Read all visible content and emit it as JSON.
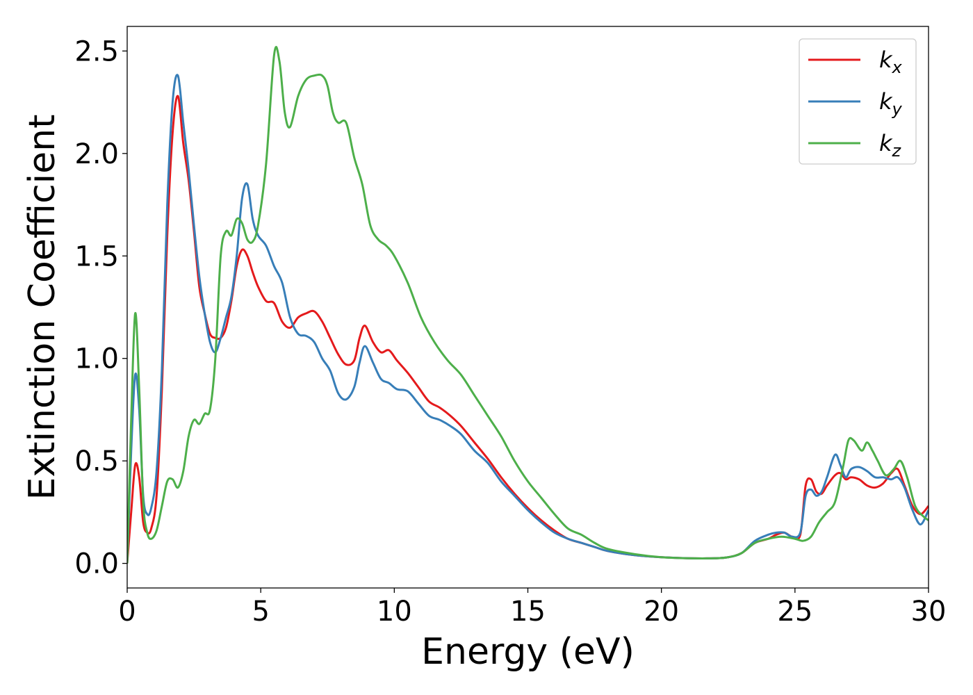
{
  "chart_data": {
    "type": "line",
    "xlabel": "Energy (eV)",
    "ylabel": "Extinction Coefficient",
    "xlim": [
      0,
      30
    ],
    "ylim": [
      -0.12,
      2.62
    ],
    "xticks": [
      0,
      5,
      10,
      15,
      20,
      25,
      30
    ],
    "xtick_labels": [
      "0",
      "5",
      "10",
      "15",
      "20",
      "25",
      "30"
    ],
    "yticks": [
      0.0,
      0.5,
      1.0,
      1.5,
      2.0,
      2.5
    ],
    "ytick_labels": [
      "0.0",
      "0.5",
      "1.0",
      "1.5",
      "2.0",
      "2.5"
    ],
    "grid": false,
    "legend_position": "top-right",
    "series": [
      {
        "name": "k_x",
        "label_main": "k",
        "label_sub": "x",
        "color": "#e41a1c",
        "x": [
          0,
          0.15,
          0.3,
          0.45,
          0.6,
          0.75,
          0.9,
          1.1,
          1.3,
          1.5,
          1.7,
          1.9,
          2.1,
          2.3,
          2.5,
          2.7,
          2.9,
          3.1,
          3.3,
          3.5,
          3.7,
          3.9,
          4.1,
          4.3,
          4.5,
          4.7,
          4.9,
          5.2,
          5.5,
          5.8,
          6.1,
          6.4,
          6.7,
          7.0,
          7.3,
          7.6,
          7.9,
          8.2,
          8.5,
          8.7,
          8.9,
          9.2,
          9.5,
          9.8,
          10.1,
          10.5,
          10.9,
          11.3,
          11.7,
          12.1,
          12.5,
          13.0,
          13.5,
          14.0,
          14.5,
          15.0,
          15.5,
          16.0,
          16.5,
          17.0,
          17.5,
          18.0,
          19.0,
          20.0,
          21.0,
          22.0,
          22.5,
          23.0,
          23.5,
          24.0,
          24.3,
          24.6,
          24.9,
          25.2,
          25.4,
          25.6,
          25.8,
          26.0,
          26.2,
          26.5,
          26.7,
          26.9,
          27.1,
          27.4,
          27.7,
          28.0,
          28.3,
          28.6,
          28.85,
          29.1,
          29.4,
          29.7,
          30.0
        ],
        "values": [
          0,
          0.25,
          0.48,
          0.42,
          0.2,
          0.15,
          0.17,
          0.33,
          0.85,
          1.6,
          2.1,
          2.28,
          2.05,
          1.87,
          1.62,
          1.35,
          1.22,
          1.12,
          1.1,
          1.1,
          1.15,
          1.28,
          1.45,
          1.53,
          1.5,
          1.42,
          1.35,
          1.28,
          1.27,
          1.18,
          1.15,
          1.2,
          1.22,
          1.23,
          1.18,
          1.1,
          1.02,
          0.97,
          0.99,
          1.1,
          1.16,
          1.08,
          1.03,
          1.04,
          0.99,
          0.93,
          0.86,
          0.79,
          0.76,
          0.72,
          0.67,
          0.59,
          0.51,
          0.42,
          0.34,
          0.27,
          0.21,
          0.16,
          0.12,
          0.1,
          0.08,
          0.06,
          0.04,
          0.03,
          0.025,
          0.025,
          0.03,
          0.05,
          0.1,
          0.12,
          0.14,
          0.15,
          0.13,
          0.14,
          0.38,
          0.41,
          0.35,
          0.34,
          0.38,
          0.43,
          0.44,
          0.41,
          0.42,
          0.41,
          0.38,
          0.37,
          0.39,
          0.44,
          0.46,
          0.38,
          0.28,
          0.24,
          0.28
        ]
      },
      {
        "name": "k_y",
        "label_main": "k",
        "label_sub": "y",
        "color": "#377eb8",
        "x": [
          0,
          0.15,
          0.3,
          0.45,
          0.6,
          0.75,
          0.9,
          1.1,
          1.3,
          1.5,
          1.7,
          1.9,
          2.1,
          2.3,
          2.5,
          2.7,
          2.9,
          3.1,
          3.3,
          3.5,
          3.7,
          3.9,
          4.1,
          4.3,
          4.5,
          4.7,
          4.9,
          5.2,
          5.5,
          5.8,
          6.1,
          6.4,
          6.7,
          7.0,
          7.3,
          7.6,
          7.9,
          8.2,
          8.5,
          8.7,
          8.9,
          9.2,
          9.5,
          9.8,
          10.1,
          10.5,
          10.9,
          11.3,
          11.7,
          12.1,
          12.5,
          13.0,
          13.5,
          14.0,
          14.5,
          15.0,
          15.5,
          16.0,
          16.5,
          17.0,
          17.5,
          18.0,
          19.0,
          20.0,
          21.0,
          22.0,
          22.5,
          23.0,
          23.5,
          24.0,
          24.3,
          24.6,
          24.9,
          25.2,
          25.4,
          25.6,
          25.8,
          26.0,
          26.2,
          26.5,
          26.7,
          26.9,
          27.1,
          27.4,
          27.7,
          28.0,
          28.3,
          28.6,
          28.85,
          29.1,
          29.4,
          29.7,
          30.0
        ],
        "values": [
          0,
          0.55,
          0.92,
          0.75,
          0.33,
          0.24,
          0.27,
          0.45,
          0.95,
          1.75,
          2.25,
          2.38,
          2.15,
          1.92,
          1.65,
          1.4,
          1.22,
          1.08,
          1.03,
          1.1,
          1.2,
          1.3,
          1.5,
          1.78,
          1.85,
          1.68,
          1.6,
          1.55,
          1.45,
          1.37,
          1.2,
          1.12,
          1.11,
          1.08,
          1.0,
          0.94,
          0.83,
          0.8,
          0.86,
          0.98,
          1.06,
          0.98,
          0.9,
          0.88,
          0.85,
          0.84,
          0.78,
          0.72,
          0.7,
          0.67,
          0.63,
          0.55,
          0.49,
          0.4,
          0.33,
          0.26,
          0.2,
          0.15,
          0.12,
          0.1,
          0.08,
          0.06,
          0.04,
          0.03,
          0.025,
          0.025,
          0.03,
          0.05,
          0.11,
          0.14,
          0.15,
          0.15,
          0.13,
          0.15,
          0.33,
          0.36,
          0.33,
          0.35,
          0.42,
          0.53,
          0.48,
          0.42,
          0.46,
          0.47,
          0.45,
          0.42,
          0.42,
          0.41,
          0.42,
          0.37,
          0.26,
          0.19,
          0.26
        ]
      },
      {
        "name": "k_z",
        "label_main": "k",
        "label_sub": "z",
        "color": "#4daf4a",
        "x": [
          0,
          0.15,
          0.3,
          0.45,
          0.6,
          0.75,
          0.9,
          1.1,
          1.3,
          1.5,
          1.7,
          1.9,
          2.1,
          2.3,
          2.5,
          2.7,
          2.9,
          3.1,
          3.3,
          3.5,
          3.7,
          3.9,
          4.1,
          4.3,
          4.5,
          4.7,
          4.9,
          5.2,
          5.5,
          5.7,
          5.9,
          6.1,
          6.4,
          6.7,
          7.0,
          7.3,
          7.5,
          7.7,
          7.9,
          8.2,
          8.5,
          8.8,
          9.1,
          9.4,
          9.7,
          10.0,
          10.5,
          11.0,
          11.5,
          12.0,
          12.5,
          13.0,
          13.5,
          14.0,
          14.5,
          15.0,
          15.5,
          16.0,
          16.5,
          17.0,
          17.5,
          18.0,
          19.0,
          20.0,
          21.0,
          22.0,
          22.5,
          23.0,
          23.5,
          24.0,
          24.5,
          25.0,
          25.3,
          25.6,
          25.9,
          26.2,
          26.5,
          26.8,
          27.0,
          27.2,
          27.5,
          27.7,
          27.9,
          28.1,
          28.4,
          28.7,
          28.95,
          29.2,
          29.5,
          29.8,
          30.0
        ],
        "values": [
          0,
          0.7,
          1.22,
          0.85,
          0.3,
          0.15,
          0.12,
          0.16,
          0.28,
          0.4,
          0.41,
          0.37,
          0.45,
          0.62,
          0.7,
          0.68,
          0.73,
          0.75,
          1.0,
          1.5,
          1.62,
          1.6,
          1.68,
          1.66,
          1.58,
          1.57,
          1.65,
          1.95,
          2.48,
          2.45,
          2.2,
          2.13,
          2.28,
          2.36,
          2.38,
          2.38,
          2.33,
          2.2,
          2.15,
          2.15,
          1.98,
          1.85,
          1.65,
          1.58,
          1.55,
          1.5,
          1.37,
          1.2,
          1.08,
          0.99,
          0.92,
          0.82,
          0.72,
          0.62,
          0.5,
          0.4,
          0.32,
          0.24,
          0.17,
          0.14,
          0.1,
          0.07,
          0.045,
          0.03,
          0.025,
          0.025,
          0.03,
          0.05,
          0.1,
          0.12,
          0.13,
          0.12,
          0.11,
          0.13,
          0.2,
          0.25,
          0.3,
          0.47,
          0.6,
          0.6,
          0.55,
          0.59,
          0.55,
          0.5,
          0.43,
          0.46,
          0.5,
          0.42,
          0.28,
          0.23,
          0.21
        ]
      }
    ]
  }
}
